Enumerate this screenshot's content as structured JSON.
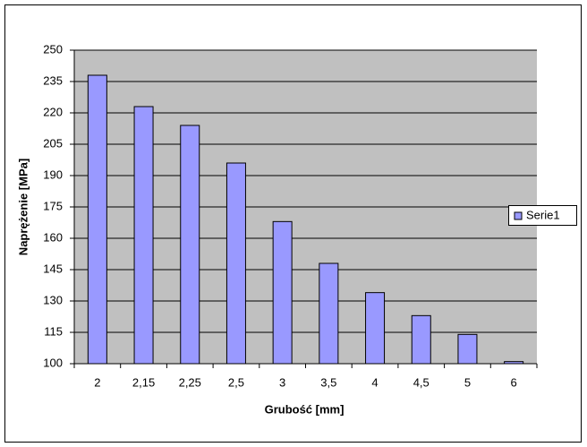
{
  "chart_data": {
    "type": "bar",
    "x_label": "Grubość [mm]",
    "y_label": "Naprężenie [MPa]",
    "categories": [
      "2",
      "2,15",
      "2,25",
      "2,5",
      "3",
      "3,5",
      "4",
      "4,5",
      "5",
      "6"
    ],
    "series": [
      {
        "name": "Serie1",
        "color": "#9999ff",
        "values": [
          238,
          223,
          214,
          196,
          168,
          148,
          134,
          123,
          114,
          101
        ]
      }
    ],
    "ylim": [
      100,
      250
    ],
    "yticks": [
      100,
      115,
      130,
      145,
      160,
      175,
      190,
      205,
      220,
      235,
      250
    ],
    "grid": true,
    "legend": "right"
  }
}
